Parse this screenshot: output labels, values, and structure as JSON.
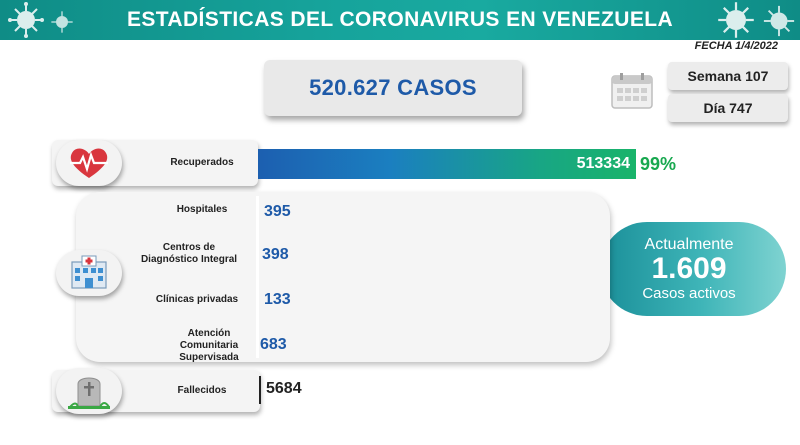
{
  "header": {
    "title": "ESTADÍSTICAS DEL CORONAVIRUS EN VENEZUELA"
  },
  "fecha": "FECHA 1/4/2022",
  "total_cases": "520.627 CASOS",
  "semana": "Semana 107",
  "dia": "Día 747",
  "recuperados": {
    "label": "Recuperados",
    "value": "513334",
    "percent": "99%"
  },
  "hospitales": {
    "label": "Hospitales",
    "value": "395"
  },
  "cdi": {
    "label_line1": "Centros de",
    "label_line2": "Diagnóstico Integral",
    "value": "398"
  },
  "clinicas": {
    "label": "Clínicas privadas",
    "value": "133"
  },
  "acs": {
    "label_line1": "Atención",
    "label_line2": "Comunitaria",
    "label_line3": "Supervisada",
    "value": "683"
  },
  "activos": {
    "line1": "Actualmente",
    "value": "1.609",
    "line3": "Casos activos"
  },
  "fallecidos": {
    "label": "Fallecidos",
    "value": "5684"
  },
  "colors": {
    "header": "#16a39b",
    "cases_text": "#1e5aa8",
    "bar_start": "#1c5fb0",
    "bar_end": "#19b46a",
    "percent": "#18a84f",
    "active_box": "#3fb5b8"
  },
  "icons": {
    "header": "virus-icon",
    "calendar": "calendar-icon",
    "recuperados": "heart-pulse-icon",
    "centros": "hospital-icon",
    "fallecidos": "tombstone-icon"
  }
}
